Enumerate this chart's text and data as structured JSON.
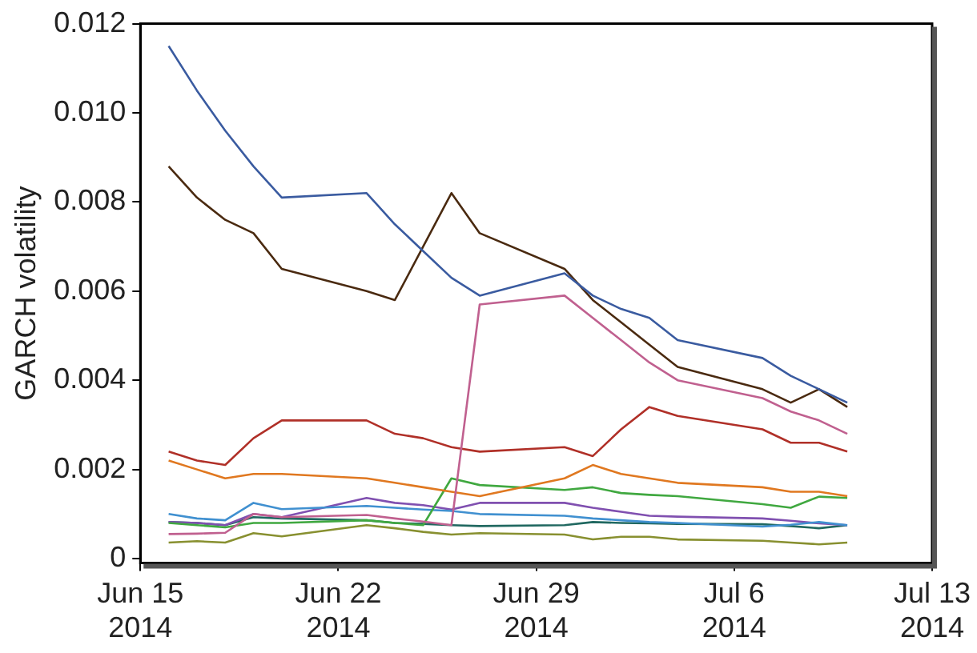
{
  "chart_data": {
    "type": "line",
    "ylabel": "GARCH volatility",
    "x": [
      "2014-06-16",
      "2014-06-17",
      "2014-06-18",
      "2014-06-19",
      "2014-06-20",
      "2014-06-23",
      "2014-06-24",
      "2014-06-25",
      "2014-06-26",
      "2014-06-27",
      "2014-06-30",
      "2014-07-01",
      "2014-07-02",
      "2014-07-03",
      "2014-07-04",
      "2014-07-07",
      "2014-07-08",
      "2014-07-09",
      "2014-07-10"
    ],
    "series": [
      {
        "color": "#3a5ba0",
        "values": [
          0.0115,
          0.0105,
          0.0096,
          0.0088,
          0.0081,
          0.0082,
          0.0075,
          0.0069,
          0.0063,
          0.0059,
          0.0064,
          0.0059,
          0.0056,
          0.0054,
          0.0049,
          0.0045,
          0.0041,
          0.0038,
          0.0035
        ]
      },
      {
        "color": "#4a2a10",
        "values": [
          0.0088,
          0.0081,
          0.0076,
          0.0073,
          0.0065,
          0.006,
          0.0058,
          0.007,
          0.0082,
          0.0073,
          0.0065,
          0.0058,
          0.0053,
          0.0048,
          0.0043,
          0.0038,
          0.0035,
          0.0038,
          0.0034
        ]
      },
      {
        "color": "#c0608f",
        "values": [
          0.00055,
          0.00056,
          0.00058,
          0.001,
          0.00093,
          0.00098,
          0.0009,
          0.00083,
          0.00075,
          0.0057,
          0.0059,
          0.0054,
          0.0049,
          0.0044,
          0.004,
          0.0036,
          0.0033,
          0.0031,
          0.0028
        ]
      },
      {
        "color": "#b03028",
        "values": [
          0.0024,
          0.0022,
          0.0021,
          0.0027,
          0.0031,
          0.0031,
          0.0028,
          0.0027,
          0.0025,
          0.0024,
          0.0025,
          0.0023,
          0.0029,
          0.0034,
          0.0032,
          0.0029,
          0.0026,
          0.0026,
          0.0024
        ]
      },
      {
        "color": "#e07820",
        "values": [
          0.0022,
          0.002,
          0.0018,
          0.0019,
          0.0019,
          0.0018,
          0.0017,
          0.0016,
          0.0015,
          0.0014,
          0.0018,
          0.0021,
          0.0019,
          0.0018,
          0.0017,
          0.0016,
          0.0015,
          0.0015,
          0.0014
        ]
      },
      {
        "color": "#40a840",
        "values": [
          0.0008,
          0.00075,
          0.0007,
          0.0008,
          0.0008,
          0.00086,
          0.0008,
          0.00075,
          0.0018,
          0.00165,
          0.00154,
          0.0016,
          0.00147,
          0.00143,
          0.0014,
          0.00122,
          0.00114,
          0.00139,
          0.00136
        ]
      },
      {
        "color": "#4090d0",
        "values": [
          0.001,
          0.0009,
          0.00086,
          0.00125,
          0.00111,
          0.00118,
          0.00114,
          0.0011,
          0.00107,
          0.001,
          0.00096,
          0.0009,
          0.00086,
          0.00082,
          0.0008,
          0.00072,
          0.00076,
          0.00082,
          0.00075
        ]
      },
      {
        "color": "#8050b0",
        "values": [
          0.00082,
          0.0008,
          0.00075,
          0.001,
          0.00093,
          0.00136,
          0.00125,
          0.0012,
          0.0011,
          0.00125,
          0.00125,
          0.00114,
          0.00105,
          0.00096,
          0.00094,
          0.0009,
          0.00085,
          0.00079,
          0.00075
        ]
      },
      {
        "color": "#206860",
        "values": [
          0.00082,
          0.0008,
          0.00075,
          0.00093,
          0.0009,
          0.00086,
          0.0008,
          0.00078,
          0.00075,
          0.00073,
          0.00075,
          0.00082,
          0.0008,
          0.00079,
          0.00078,
          0.00077,
          0.00073,
          0.00068,
          0.00075
        ]
      },
      {
        "color": "#889030",
        "values": [
          0.00036,
          0.00039,
          0.00036,
          0.00057,
          0.0005,
          0.00075,
          0.00068,
          0.0006,
          0.00054,
          0.00057,
          0.00054,
          0.00043,
          0.00049,
          0.00049,
          0.00043,
          0.0004,
          0.00036,
          0.00032,
          0.00036
        ]
      }
    ],
    "xlim": [
      "2014-06-15",
      "2014-07-13"
    ],
    "xticks": [
      {
        "value": "2014-06-15",
        "label": "Jun 15 2014"
      },
      {
        "value": "2014-06-22",
        "label": "Jun 22 2014"
      },
      {
        "value": "2014-06-29",
        "label": "Jun 29 2014"
      },
      {
        "value": "2014-07-06",
        "label": "Jul 6 2014"
      },
      {
        "value": "2014-07-13",
        "label": "Jul 13 2014"
      }
    ],
    "ylim": [
      -0.0001,
      0.012
    ],
    "yticks": [
      0,
      0.002,
      0.004,
      0.006,
      0.008,
      {
        "value": 0.01,
        "label": "0.010"
      },
      0.012
    ],
    "grid": false,
    "legend": false
  }
}
